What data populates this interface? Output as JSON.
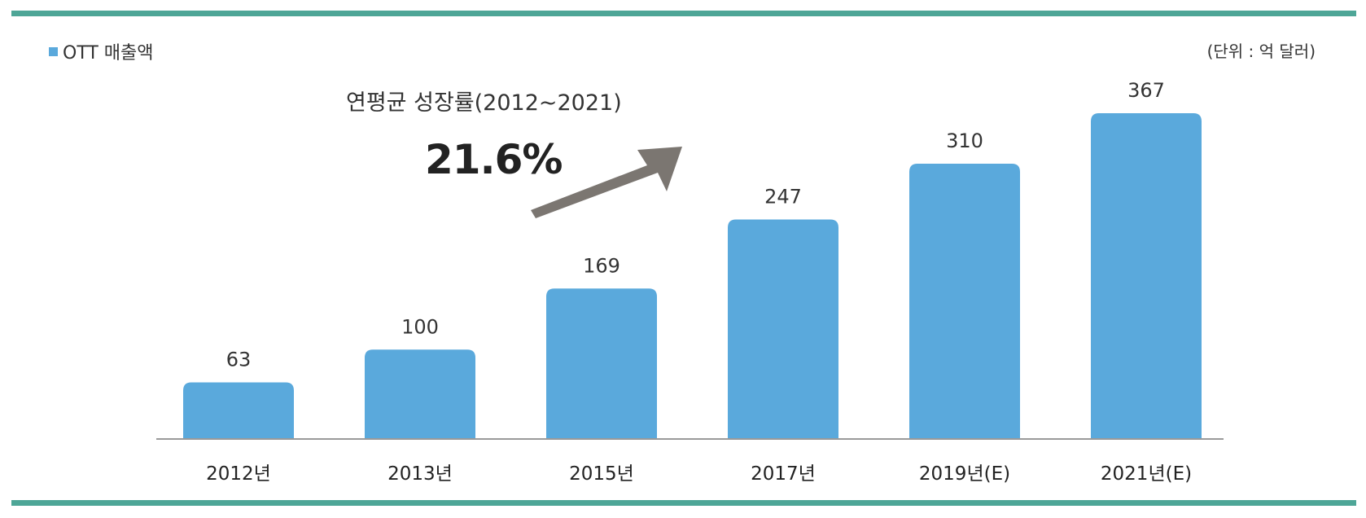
{
  "legend": {
    "label": "OTT 매출액",
    "color": "#5aa9dc"
  },
  "unit_label": "(단위 : 억 달러)",
  "annotation": {
    "label": "연평균 성장률(2012~2021)",
    "value": "21.6%"
  },
  "colors": {
    "bar": "#5aa9dc",
    "rule": "#4ea697",
    "arrow": "#7b7671",
    "axis": "#9a9a9a"
  },
  "chart_data": {
    "type": "bar",
    "categories": [
      "2012년",
      "2013년",
      "2015년",
      "2017년",
      "2019년(E)",
      "2021년(E)"
    ],
    "series": [
      {
        "name": "OTT 매출액",
        "values": [
          63,
          100,
          169,
          247,
          310,
          367
        ]
      }
    ],
    "data_labels": [
      "63",
      "100",
      "169",
      "247",
      "310",
      "367"
    ],
    "title": "",
    "xlabel": "",
    "ylabel": "",
    "ylim": [
      0,
      367
    ],
    "grid": false,
    "legend_position": "top-left"
  }
}
